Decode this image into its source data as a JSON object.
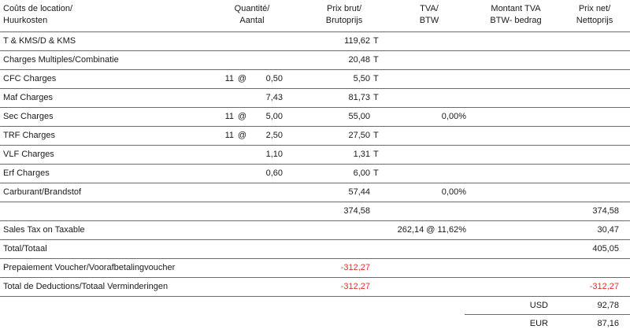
{
  "header": {
    "col_desc": [
      "Coûts de location/",
      "Huurkosten"
    ],
    "col_qty": [
      "Quantité/",
      "Aantal"
    ],
    "col_price": [
      "Prix brut/",
      "Brutoprijs"
    ],
    "col_tva": [
      "TVA/",
      "BTW"
    ],
    "col_tva_amount": [
      "Montant TVA",
      "BTW- bedrag"
    ],
    "col_net": [
      "Prix net/",
      "Nettoprijs"
    ]
  },
  "rows": [
    {
      "label": "T & KMS/D & KMS",
      "qty_count": "",
      "qty_at": "",
      "qty": "",
      "price": "119,62",
      "price_suffix": "T",
      "tva": "",
      "net": ""
    },
    {
      "label": "Charges Multiples/Combinatie",
      "qty_count": "",
      "qty_at": "",
      "qty": "",
      "price": "20,48",
      "price_suffix": "T",
      "tva": "",
      "net": ""
    },
    {
      "label": "CFC Charges",
      "qty_count": "11",
      "qty_at": "@",
      "qty": "0,50",
      "price": "5,50",
      "price_suffix": "T",
      "tva": "",
      "net": ""
    },
    {
      "label": "Maf Charges",
      "qty_count": "",
      "qty_at": "",
      "qty": "7,43",
      "price": "81,73",
      "price_suffix": "T",
      "tva": "",
      "net": ""
    },
    {
      "label": "Sec Charges",
      "qty_count": "11",
      "qty_at": "@",
      "qty": "5,00",
      "price": "55,00",
      "price_suffix": "",
      "tva": "0,00%",
      "net": ""
    },
    {
      "label": "TRF Charges",
      "qty_count": "11",
      "qty_at": "@",
      "qty": "2,50",
      "price": "27,50",
      "price_suffix": "T",
      "tva": "",
      "net": ""
    },
    {
      "label": "VLF Charges",
      "qty_count": "",
      "qty_at": "",
      "qty": "1,10",
      "price": "1,31",
      "price_suffix": "T",
      "tva": "",
      "net": ""
    },
    {
      "label": "Erf Charges",
      "qty_count": "",
      "qty_at": "",
      "qty": "0,60",
      "price": "6,00",
      "price_suffix": "T",
      "tva": "",
      "net": ""
    },
    {
      "label": "Carburant/Brandstof",
      "qty_count": "",
      "qty_at": "",
      "qty": "",
      "price": "57,44",
      "price_suffix": "",
      "tva": "0,00%",
      "net": ""
    }
  ],
  "subtotal": {
    "price": "374,58",
    "net": "374,58"
  },
  "sales_tax": {
    "label": "Sales Tax on Taxable",
    "tva": "262,14 @ 11,62%",
    "net": "30,47"
  },
  "total": {
    "label": "Total/Totaal",
    "net": "405,05"
  },
  "prepaiement": {
    "label": "Prepaiement Voucher/Voorafbetalingvoucher",
    "price": "-312,27"
  },
  "deductions": {
    "label": "Total de Deductions/Totaal Verminderingen",
    "price": "-312,27",
    "net": "-312,27"
  },
  "currencies": [
    {
      "code": "USD",
      "amount": "92,78"
    },
    {
      "code": "EUR",
      "amount": "87,16"
    }
  ],
  "colors": {
    "text": "#1a1a1a",
    "negative": "#e0322f",
    "rule": "#6a6a6a"
  }
}
